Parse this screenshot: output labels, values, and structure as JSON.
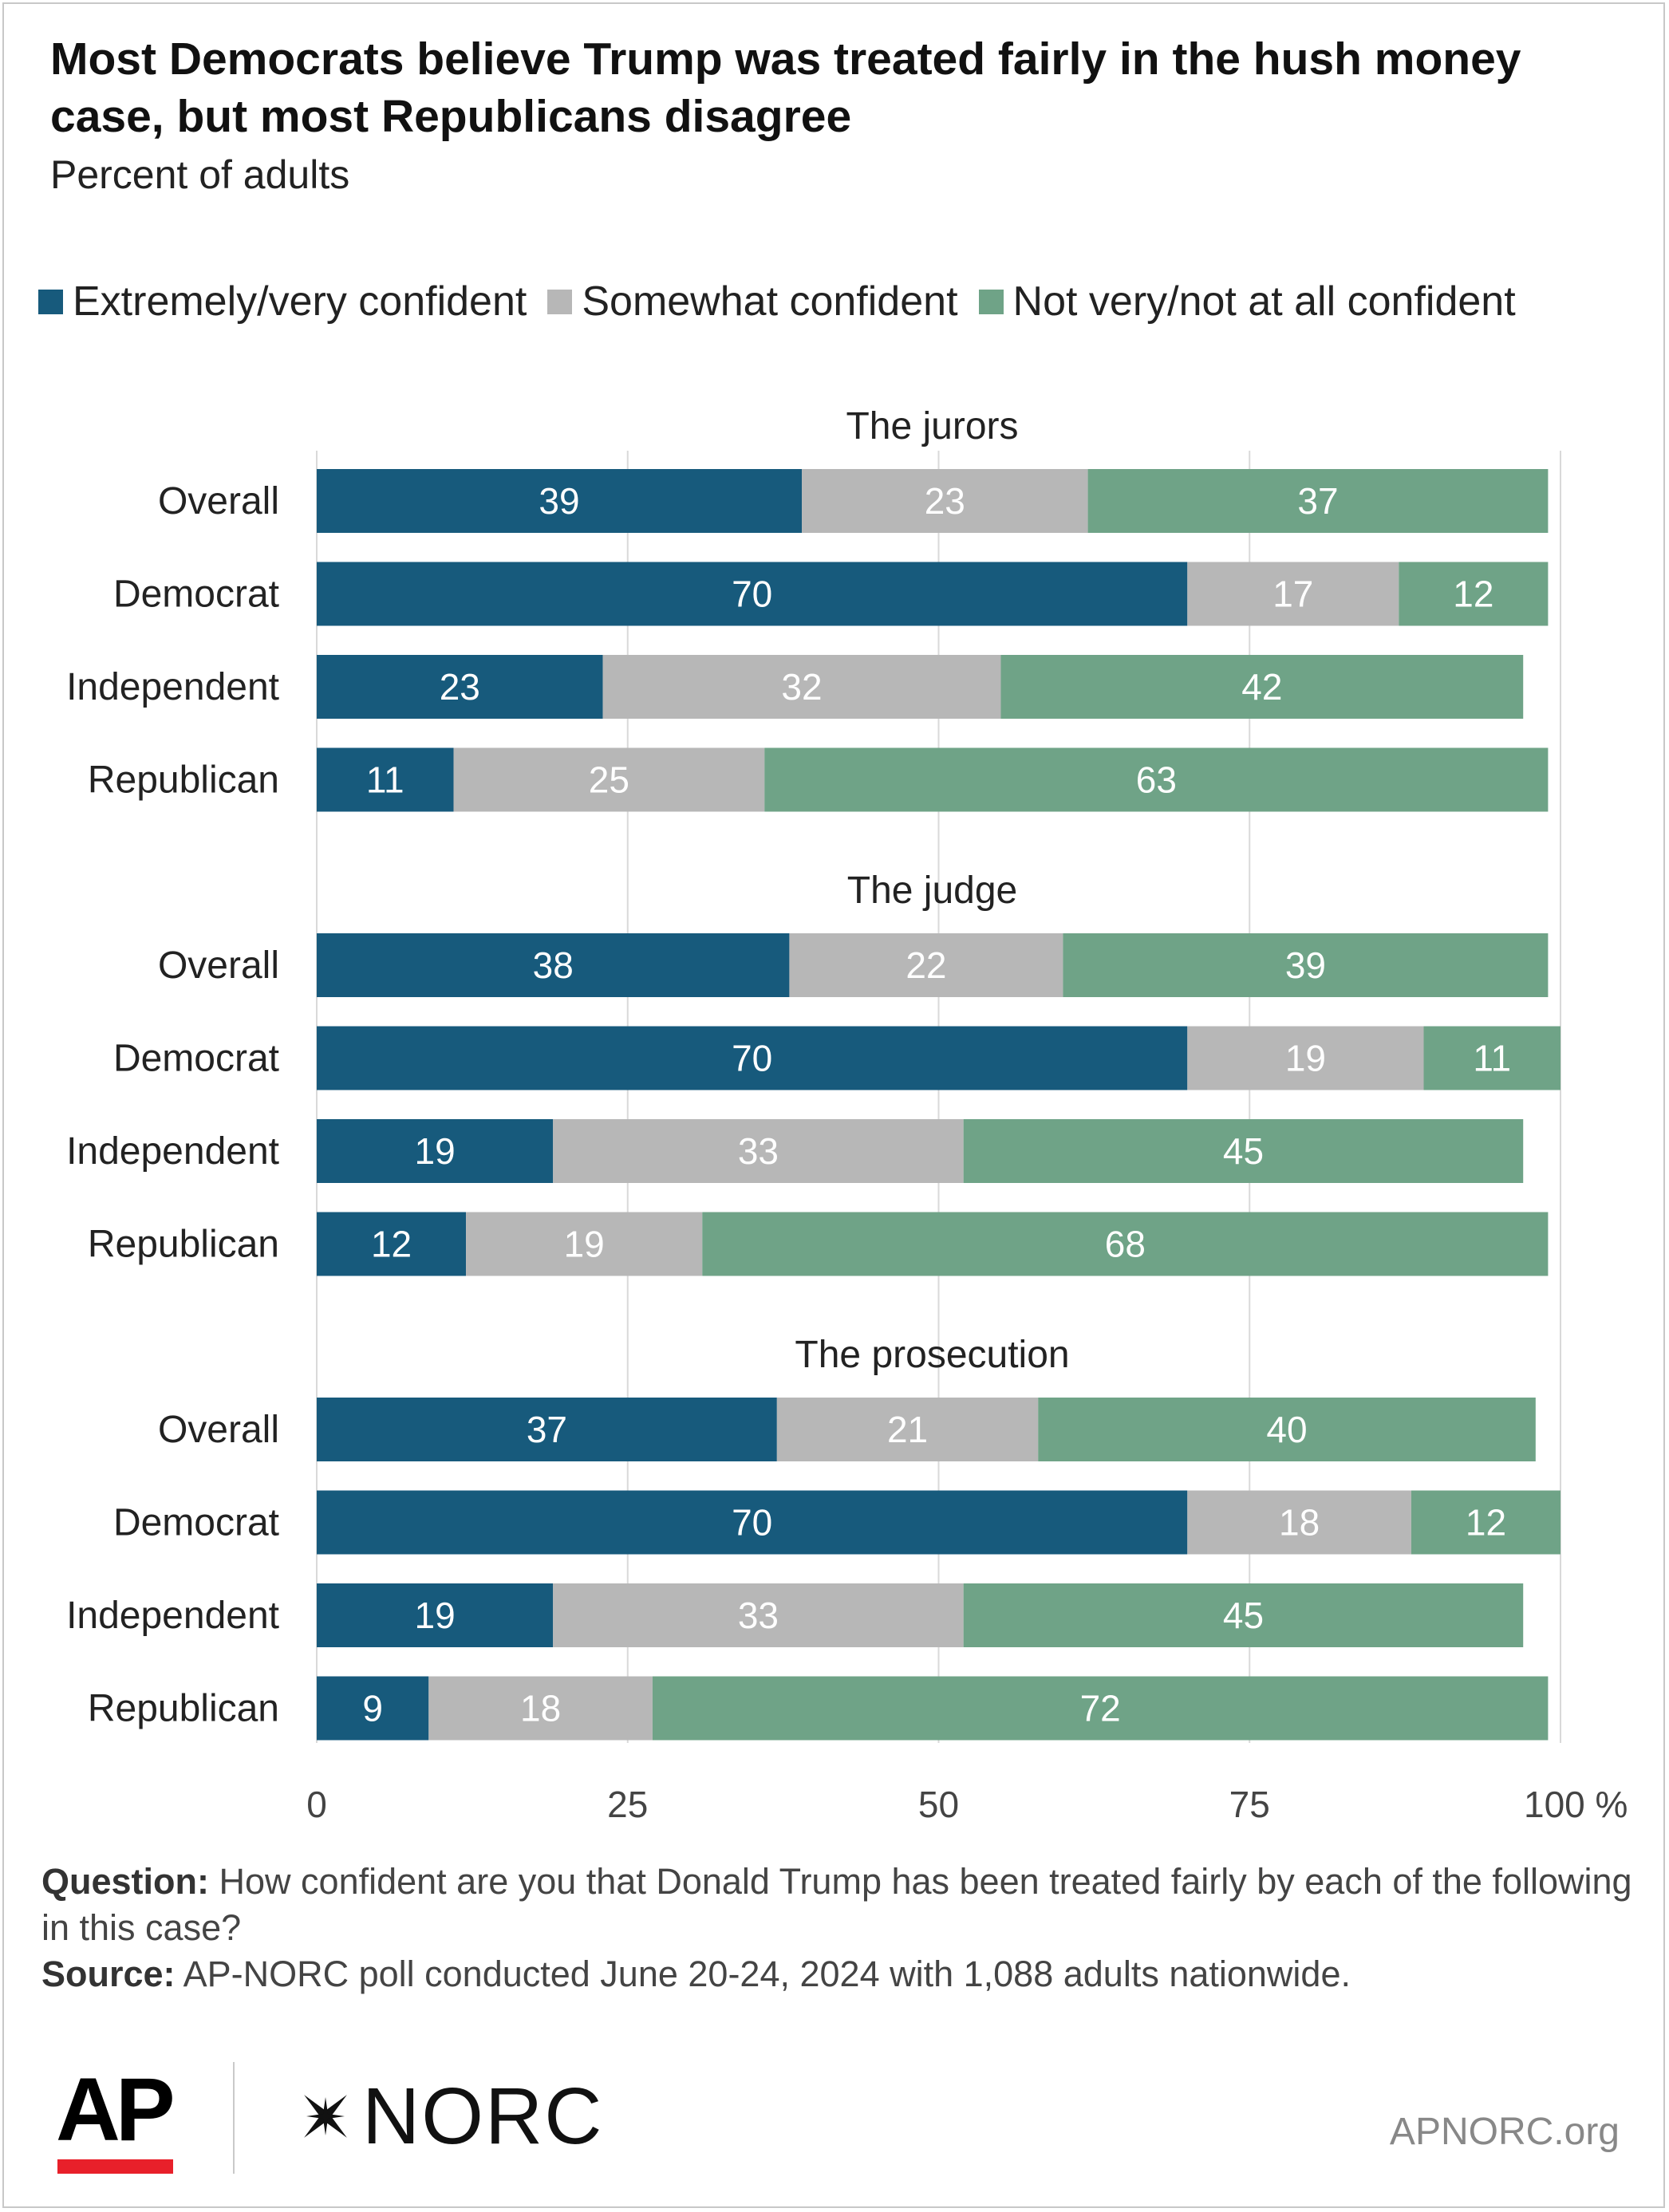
{
  "title": "Most Democrats believe Trump was treated fairly in the hush money case, but most Republicans disagree",
  "subtitle": "Percent of adults",
  "colors": {
    "extremely": "#175a7c",
    "somewhat": "#b7b7b7",
    "not_very": "#6fa387"
  },
  "legend": [
    {
      "label": "Extremely/very confident",
      "color_key": "extremely"
    },
    {
      "label": "Somewhat confident",
      "color_key": "somewhat"
    },
    {
      "label": "Not very/not at all confident",
      "color_key": "not_very"
    }
  ],
  "chart_data": {
    "type": "bar",
    "orientation": "horizontal",
    "stacked": true,
    "xlim": [
      0,
      100
    ],
    "ticks": [
      0,
      25,
      50,
      75,
      100
    ],
    "tick_labels": [
      "0",
      "25",
      "50",
      "75",
      "100 %"
    ],
    "grid": true,
    "legend_position": "top",
    "series_names": [
      "Extremely/very confident",
      "Somewhat confident",
      "Not very/not at all confident"
    ],
    "groups": [
      {
        "label": "The jurors",
        "rows": [
          {
            "category": "Overall",
            "values": [
              39,
              23,
              37
            ]
          },
          {
            "category": "Democrat",
            "values": [
              70,
              17,
              12
            ]
          },
          {
            "category": "Independent",
            "values": [
              23,
              32,
              42
            ]
          },
          {
            "category": "Republican",
            "values": [
              11,
              25,
              63
            ]
          }
        ]
      },
      {
        "label": "The judge",
        "rows": [
          {
            "category": "Overall",
            "values": [
              38,
              22,
              39
            ]
          },
          {
            "category": "Democrat",
            "values": [
              70,
              19,
              11
            ]
          },
          {
            "category": "Independent",
            "values": [
              19,
              33,
              45
            ]
          },
          {
            "category": "Republican",
            "values": [
              12,
              19,
              68
            ]
          }
        ]
      },
      {
        "label": "The prosecution",
        "rows": [
          {
            "category": "Overall",
            "values": [
              37,
              21,
              40
            ]
          },
          {
            "category": "Democrat",
            "values": [
              70,
              18,
              12
            ]
          },
          {
            "category": "Independent",
            "values": [
              19,
              33,
              45
            ]
          },
          {
            "category": "Republican",
            "values": [
              9,
              18,
              72
            ]
          }
        ]
      }
    ]
  },
  "footer": {
    "question_label": "Question:",
    "question_text": "How confident are you that Donald Trump has been treated fairly by each of the following in this case?",
    "source_label": "Source:",
    "source_text": "AP-NORC poll conducted June 20-24, 2024 with 1,088 adults nationwide."
  },
  "logos": {
    "ap": "AP",
    "norc": "NORC",
    "site": "APNORC.org"
  }
}
